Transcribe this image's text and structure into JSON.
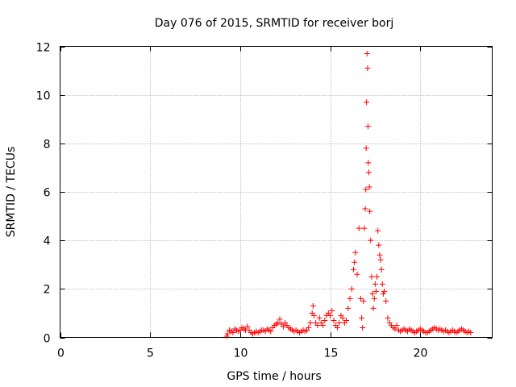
{
  "chart_data": {
    "type": "scatter",
    "title": "Day 076 of 2015, SRMTID for receiver borj",
    "xlabel": "GPS time / hours",
    "ylabel": "SRMTID / TECUs",
    "xlim": [
      0,
      24
    ],
    "ylim": [
      0,
      12
    ],
    "xticks": [
      0,
      5,
      10,
      15,
      20
    ],
    "yticks": [
      0,
      2,
      4,
      6,
      8,
      10,
      12
    ],
    "x_tick_labels": [
      "0",
      "5",
      "10",
      "15",
      "20"
    ],
    "y_tick_labels": [
      "0",
      "2",
      "4",
      "6",
      "8",
      "10",
      "12"
    ],
    "grid": true,
    "marker": "plus",
    "color": "#ff0000",
    "series": [
      {
        "name": "borj",
        "points": [
          [
            9.25,
            0.05
          ],
          [
            9.3,
            0.15
          ],
          [
            9.4,
            0.3
          ],
          [
            9.5,
            0.25
          ],
          [
            9.6,
            0.2
          ],
          [
            9.7,
            0.35
          ],
          [
            9.8,
            0.3
          ],
          [
            9.9,
            0.25
          ],
          [
            10.0,
            0.3
          ],
          [
            10.1,
            0.4
          ],
          [
            10.2,
            0.35
          ],
          [
            10.3,
            0.3
          ],
          [
            10.4,
            0.45
          ],
          [
            10.5,
            0.3
          ],
          [
            10.6,
            0.2
          ],
          [
            10.7,
            0.15
          ],
          [
            10.8,
            0.2
          ],
          [
            10.9,
            0.25
          ],
          [
            11.0,
            0.2
          ],
          [
            11.1,
            0.25
          ],
          [
            11.2,
            0.3
          ],
          [
            11.3,
            0.3
          ],
          [
            11.4,
            0.25
          ],
          [
            11.5,
            0.35
          ],
          [
            11.6,
            0.3
          ],
          [
            11.7,
            0.25
          ],
          [
            11.8,
            0.4
          ],
          [
            11.9,
            0.5
          ],
          [
            12.0,
            0.55
          ],
          [
            12.1,
            0.6
          ],
          [
            12.2,
            0.75
          ],
          [
            12.3,
            0.55
          ],
          [
            12.4,
            0.45
          ],
          [
            12.5,
            0.6
          ],
          [
            12.6,
            0.5
          ],
          [
            12.7,
            0.4
          ],
          [
            12.8,
            0.35
          ],
          [
            12.9,
            0.3
          ],
          [
            13.0,
            0.25
          ],
          [
            13.1,
            0.3
          ],
          [
            13.2,
            0.25
          ],
          [
            13.3,
            0.2
          ],
          [
            13.4,
            0.25
          ],
          [
            13.5,
            0.3
          ],
          [
            13.6,
            0.25
          ],
          [
            13.7,
            0.3
          ],
          [
            13.8,
            0.4
          ],
          [
            13.9,
            0.6
          ],
          [
            14.0,
            1.0
          ],
          [
            14.05,
            1.3
          ],
          [
            14.1,
            0.9
          ],
          [
            14.2,
            0.6
          ],
          [
            14.3,
            0.5
          ],
          [
            14.4,
            0.8
          ],
          [
            14.5,
            0.6
          ],
          [
            14.6,
            0.5
          ],
          [
            14.7,
            0.7
          ],
          [
            14.8,
            0.9
          ],
          [
            14.9,
            1.0
          ],
          [
            15.0,
            0.9
          ],
          [
            15.1,
            1.1
          ],
          [
            15.2,
            0.7
          ],
          [
            15.3,
            0.5
          ],
          [
            15.4,
            0.4
          ],
          [
            15.5,
            0.6
          ],
          [
            15.6,
            0.9
          ],
          [
            15.7,
            0.8
          ],
          [
            15.8,
            0.6
          ],
          [
            15.9,
            0.7
          ],
          [
            16.0,
            1.2
          ],
          [
            16.1,
            1.6
          ],
          [
            16.2,
            2.0
          ],
          [
            16.3,
            2.8
          ],
          [
            16.35,
            3.1
          ],
          [
            16.4,
            3.5
          ],
          [
            16.5,
            2.6
          ],
          [
            16.6,
            4.5
          ],
          [
            16.7,
            1.6
          ],
          [
            16.75,
            0.8
          ],
          [
            16.8,
            0.4
          ],
          [
            16.85,
            1.5
          ],
          [
            16.9,
            4.5
          ],
          [
            16.95,
            5.3
          ],
          [
            16.98,
            6.1
          ],
          [
            17.0,
            7.8
          ],
          [
            17.02,
            9.7
          ],
          [
            17.05,
            11.7
          ],
          [
            17.08,
            11.1
          ],
          [
            17.1,
            8.7
          ],
          [
            17.12,
            7.2
          ],
          [
            17.15,
            6.8
          ],
          [
            17.18,
            6.2
          ],
          [
            17.2,
            5.2
          ],
          [
            17.25,
            4.0
          ],
          [
            17.3,
            2.5
          ],
          [
            17.35,
            1.8
          ],
          [
            17.4,
            1.2
          ],
          [
            17.45,
            1.6
          ],
          [
            17.5,
            2.2
          ],
          [
            17.55,
            1.9
          ],
          [
            17.6,
            2.5
          ],
          [
            17.65,
            4.4
          ],
          [
            17.7,
            3.8
          ],
          [
            17.75,
            3.4
          ],
          [
            17.8,
            3.2
          ],
          [
            17.85,
            2.8
          ],
          [
            17.9,
            2.2
          ],
          [
            17.95,
            1.8
          ],
          [
            18.0,
            1.9
          ],
          [
            18.1,
            1.5
          ],
          [
            18.2,
            0.8
          ],
          [
            18.3,
            0.6
          ],
          [
            18.4,
            0.5
          ],
          [
            18.5,
            0.4
          ],
          [
            18.6,
            0.35
          ],
          [
            18.7,
            0.5
          ],
          [
            18.8,
            0.3
          ],
          [
            18.9,
            0.25
          ],
          [
            19.0,
            0.3
          ],
          [
            19.1,
            0.35
          ],
          [
            19.2,
            0.3
          ],
          [
            19.3,
            0.25
          ],
          [
            19.4,
            0.35
          ],
          [
            19.5,
            0.3
          ],
          [
            19.6,
            0.25
          ],
          [
            19.7,
            0.2
          ],
          [
            19.8,
            0.25
          ],
          [
            19.9,
            0.3
          ],
          [
            20.0,
            0.35
          ],
          [
            20.1,
            0.3
          ],
          [
            20.2,
            0.25
          ],
          [
            20.3,
            0.2
          ],
          [
            20.4,
            0.2
          ],
          [
            20.5,
            0.25
          ],
          [
            20.6,
            0.3
          ],
          [
            20.7,
            0.35
          ],
          [
            20.8,
            0.4
          ],
          [
            20.9,
            0.35
          ],
          [
            21.0,
            0.3
          ],
          [
            21.1,
            0.35
          ],
          [
            21.2,
            0.3
          ],
          [
            21.3,
            0.25
          ],
          [
            21.4,
            0.3
          ],
          [
            21.5,
            0.25
          ],
          [
            21.6,
            0.2
          ],
          [
            21.7,
            0.25
          ],
          [
            21.8,
            0.3
          ],
          [
            21.9,
            0.25
          ],
          [
            22.0,
            0.2
          ],
          [
            22.1,
            0.25
          ],
          [
            22.2,
            0.3
          ],
          [
            22.3,
            0.35
          ],
          [
            22.4,
            0.3
          ],
          [
            22.5,
            0.25
          ],
          [
            22.6,
            0.2
          ],
          [
            22.7,
            0.25
          ],
          [
            22.8,
            0.2
          ]
        ]
      }
    ]
  }
}
